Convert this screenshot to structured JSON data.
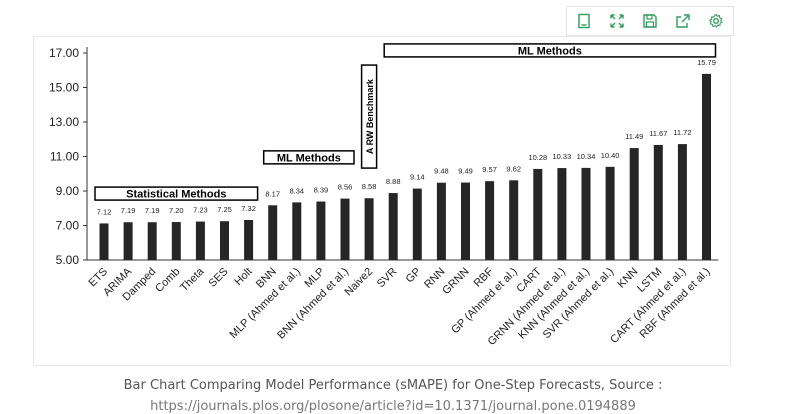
{
  "toolbar": {
    "buttons": [
      {
        "name": "view-data-button",
        "icon": "document-icon"
      },
      {
        "name": "fullscreen-button",
        "icon": "expand-icon"
      },
      {
        "name": "save-button",
        "icon": "floppy-icon"
      },
      {
        "name": "share-button",
        "icon": "share-icon"
      },
      {
        "name": "settings-button",
        "icon": "gear-icon"
      }
    ],
    "accent_color": "#2e9e58"
  },
  "chart_data": {
    "type": "bar",
    "categories": [
      "ETS",
      "ARIMA",
      "Damped",
      "Comb",
      "Theta",
      "SES",
      "Holt",
      "BNN",
      "MLP (Ahmed et al.)",
      "MLP",
      "BNN (Ahmed et al.)",
      "Naive2",
      "SVR",
      "GP",
      "RNN",
      "GRNN",
      "RBF",
      "GP (Ahmed et al.)",
      "CART",
      "GRNN (Ahmed et al.)",
      "KNN (Ahmed et al.)",
      "SVR (Ahmed et al.)",
      "KNN",
      "LSTM",
      "CART (Ahmed et al.)",
      "RBF (Ahmed et al.)"
    ],
    "values": [
      7.12,
      7.19,
      7.19,
      7.2,
      7.23,
      7.25,
      7.32,
      8.17,
      8.34,
      8.39,
      8.56,
      8.58,
      8.88,
      9.14,
      9.48,
      9.49,
      9.57,
      9.62,
      10.28,
      10.33,
      10.34,
      10.4,
      11.49,
      11.67,
      11.72,
      15.79
    ],
    "data_labels": [
      "7.12",
      "7.19",
      "7.19",
      "7.20",
      "7.23",
      "7.25",
      "7.32",
      "8.17",
      "8.34",
      "8.39",
      "8.56",
      "8.58",
      "8.88",
      "9.14",
      "9.48",
      "9.49",
      "9.57",
      "9.62",
      "10.28",
      "10.33",
      "10.34",
      "10.40",
      "11.49",
      "11.67",
      "11.72",
      "15.79"
    ],
    "yticks": [
      "5.00",
      "7.00",
      "9.00",
      "11.00",
      "13.00",
      "15.00",
      "17.00"
    ],
    "ylim": [
      5,
      17
    ],
    "bar_color": "#262626",
    "grid": false,
    "annotations": [
      {
        "text": "Statistical Methods",
        "from_index": 0,
        "to_index": 6,
        "y": 8.85
      },
      {
        "text": "ML Methods",
        "from_index": 7,
        "to_index": 10,
        "y": 10.95
      },
      {
        "text": "A RW Benchmark",
        "from_index": 11,
        "to_index": 11,
        "y": 16.3,
        "vertical": true
      },
      {
        "text": "ML Methods",
        "from_index": 12,
        "to_index": 25,
        "y": 17.15
      }
    ]
  },
  "caption": {
    "line1": "Bar Chart Comparing Model Performance (sMAPE) for One-Step Forecasts, Source :",
    "line2": "https://journals.plos.org/plosone/article?id=10.1371/journal.pone.0194889"
  }
}
